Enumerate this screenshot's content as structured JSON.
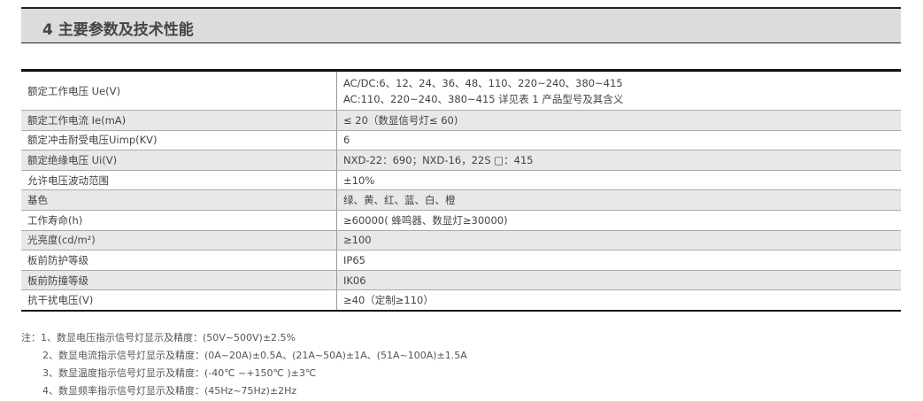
{
  "section_title": "4 主要参数及技术性能",
  "rows": [
    {
      "label": "额定工作电压 Ue(V)",
      "value": [
        "AC/DC:6、12、24、36、48、110、220~240、380~415",
        "AC:110、220~240、380~415 详见表 1 产品型号及其含义"
      ]
    },
    {
      "label": "额定工作电流 Ie(mA)",
      "value": [
        "≤ 20（数显信号灯≤ 60)"
      ]
    },
    {
      "label": "额定冲击耐受电压Uimp(KV)",
      "value": [
        "6"
      ]
    },
    {
      "label": "额定绝缘电压 Ui(V)",
      "value": [
        "NXD-22：690；NXD-16，22S □：415"
      ]
    },
    {
      "label": "允许电压波动范围",
      "value": [
        "±10%"
      ]
    },
    {
      "label": "基色",
      "value": [
        "绿、黄、红、蓝、白、橙"
      ]
    },
    {
      "label": "工作寿命(h)",
      "value": [
        "≥60000( 蜂鸣器、数显灯≥30000)"
      ]
    },
    {
      "label": "光亮度(cd/m²)",
      "value": [
        "≥100"
      ]
    },
    {
      "label": "板前防护等级",
      "value": [
        "IP65"
      ]
    },
    {
      "label": "板前防撞等级",
      "value": [
        "IK06"
      ]
    },
    {
      "label": "抗干扰电压(V)",
      "value": [
        "≥40（定制≥110）"
      ]
    }
  ],
  "notes": [
    "注：1、数显电压指示信号灯显示及精度：(50V~500V)±2.5%",
    "2、数显电流指示信号灯显示及精度：(0A~20A)±0.5A、(21A~50A)±1A、(51A~100A)±1.5A",
    "3、数显温度指示信号灯显示及精度：(-40℃ ~+150℃ )±3℃",
    "4、数显频率指示信号灯显示及精度：(45Hz~75Hz)±2Hz"
  ]
}
